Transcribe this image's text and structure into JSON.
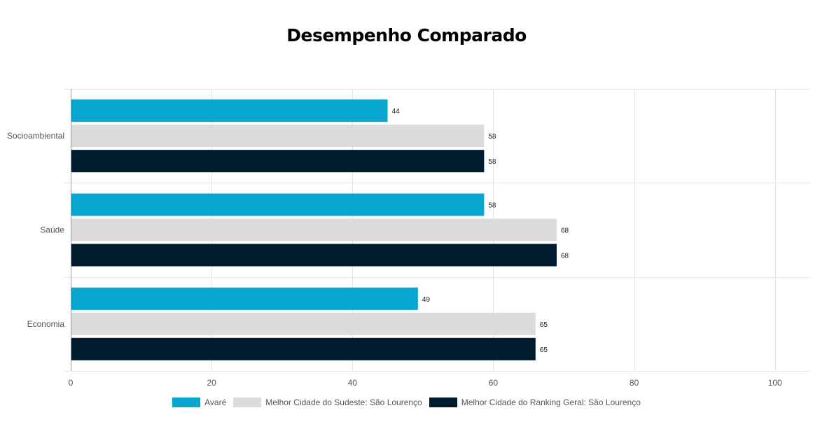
{
  "chart_data": {
    "type": "bar",
    "orientation": "horizontal",
    "title": "Desempenho Comparado",
    "categories": [
      "Socioambiental",
      "Saúde",
      "Economia"
    ],
    "series": [
      {
        "name": "Avaré",
        "values": [
          44,
          58,
          49
        ],
        "color": "#08a5d1"
      },
      {
        "name": "Melhor Cidade do Sudeste: São Lourenço",
        "values": [
          58,
          68,
          65
        ],
        "color": "#dcdcdc"
      },
      {
        "name": "Melhor Cidade do Ranking Geral: São Lourenço",
        "values": [
          58,
          68,
          65
        ],
        "color": "#001b2e"
      }
    ],
    "bar_lengths": [
      [
        45,
        58.7,
        49.3
      ],
      [
        58.7,
        69,
        66
      ],
      [
        58.7,
        69,
        66
      ]
    ],
    "xlim": [
      0,
      105
    ],
    "xticks": [
      0,
      20,
      40,
      60,
      80,
      100
    ],
    "grid": true,
    "legend_position": "bottom"
  }
}
